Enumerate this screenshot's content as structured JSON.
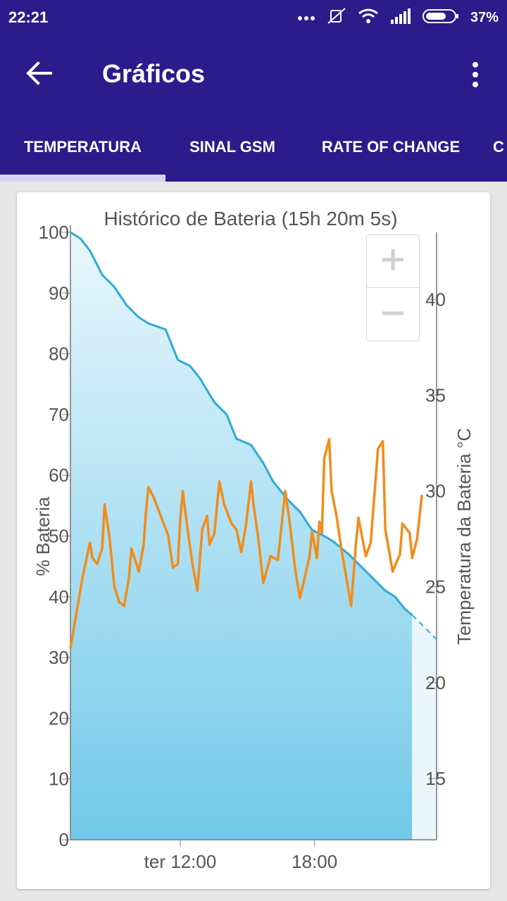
{
  "status_bar": {
    "time": "22:21",
    "battery_percent": "37%",
    "icons": [
      "more-dots-icon",
      "mute-icon",
      "wifi-icon",
      "signal-icon",
      "battery-icon"
    ]
  },
  "app_bar": {
    "title": "Gráficos",
    "back_icon": "arrow-back-icon",
    "menu_icon": "more-vert-icon"
  },
  "tabs": [
    {
      "label": "TEMPERATURA",
      "selected": true
    },
    {
      "label": "SINAL GSM",
      "selected": false
    },
    {
      "label": "RATE OF CHANGE",
      "selected": false
    },
    {
      "label": "C",
      "selected": false
    }
  ],
  "colors": {
    "primary": "#2c1b8a",
    "battery_line": "#2bacd8",
    "temperature_line": "#f28c1a",
    "area_top": "#e9f7fc",
    "area_bottom": "#72c9ea"
  },
  "zoom": {
    "in_icon": "plus-icon",
    "out_icon": "minus-icon"
  },
  "chart_data": {
    "type": "line",
    "title": "Histórico de Bateria (15h 20m 5s)",
    "x_unit": "hours since start",
    "x_ticks": [
      {
        "x": 4.5,
        "label": "ter 12:00"
      },
      {
        "x": 10.0,
        "label": "18:00"
      }
    ],
    "xlim": [
      0,
      15.0
    ],
    "y_left": {
      "label": "% Bateria",
      "lim": [
        0,
        100
      ],
      "ticks": [
        0,
        10,
        20,
        30,
        40,
        50,
        60,
        70,
        80,
        90,
        100
      ]
    },
    "y_right": {
      "label": "Temperatura da Bateria °C",
      "lim": [
        11.8,
        43.5
      ],
      "ticks": [
        15,
        20,
        25,
        30,
        35,
        40
      ]
    },
    "series": [
      {
        "name": "",
        "axis": "left",
        "style": "area",
        "points": [
          [
            0,
            100
          ],
          [
            0.4,
            99
          ],
          [
            0.8,
            97
          ],
          [
            1.3,
            93
          ],
          [
            1.8,
            91
          ],
          [
            2.3,
            88
          ],
          [
            2.8,
            86
          ],
          [
            3.2,
            85
          ],
          [
            3.9,
            84
          ],
          [
            4.4,
            79
          ],
          [
            4.9,
            78
          ],
          [
            5.3,
            76
          ],
          [
            5.9,
            72
          ],
          [
            6.4,
            70
          ],
          [
            6.8,
            66
          ],
          [
            7.4,
            65
          ],
          [
            7.9,
            62
          ],
          [
            8.3,
            59
          ],
          [
            8.9,
            56
          ],
          [
            9.4,
            54
          ],
          [
            9.9,
            51
          ],
          [
            10.4,
            50
          ],
          [
            10.8,
            49
          ],
          [
            11.4,
            47
          ],
          [
            11.9,
            45
          ],
          [
            12.4,
            43
          ],
          [
            12.9,
            41
          ],
          [
            13.3,
            40
          ],
          [
            13.7,
            38
          ],
          [
            14.0,
            37
          ]
        ]
      },
      {
        "name": "",
        "axis": "left",
        "style": "dashed",
        "points": [
          [
            14.0,
            37
          ],
          [
            15.0,
            33
          ]
        ]
      },
      {
        "name": "",
        "axis": "right",
        "style": "line",
        "points": [
          [
            0,
            21.8
          ],
          [
            0.5,
            25.5
          ],
          [
            0.8,
            27.3
          ],
          [
            0.9,
            26.5
          ],
          [
            1.1,
            26.2
          ],
          [
            1.3,
            27.0
          ],
          [
            1.4,
            29.3
          ],
          [
            1.6,
            27.6
          ],
          [
            1.8,
            25.0
          ],
          [
            2.0,
            24.2
          ],
          [
            2.2,
            24.0
          ],
          [
            2.4,
            25.5
          ],
          [
            2.5,
            27.0
          ],
          [
            2.8,
            25.8
          ],
          [
            3.0,
            27.2
          ],
          [
            3.1,
            29.0
          ],
          [
            3.2,
            30.2
          ],
          [
            3.4,
            29.7
          ],
          [
            3.7,
            28.7
          ],
          [
            4.0,
            27.7
          ],
          [
            4.2,
            26.0
          ],
          [
            4.4,
            26.2
          ],
          [
            4.5,
            28.5
          ],
          [
            4.6,
            30.0
          ],
          [
            4.8,
            28.0
          ],
          [
            5.0,
            26.2
          ],
          [
            5.2,
            24.8
          ],
          [
            5.4,
            28.0
          ],
          [
            5.6,
            28.7
          ],
          [
            5.7,
            27.2
          ],
          [
            5.9,
            27.8
          ],
          [
            6.1,
            30.5
          ],
          [
            6.3,
            29.3
          ],
          [
            6.6,
            28.3
          ],
          [
            6.8,
            28.0
          ],
          [
            7.0,
            26.8
          ],
          [
            7.2,
            28.3
          ],
          [
            7.4,
            30.5
          ],
          [
            7.5,
            29.3
          ],
          [
            7.7,
            27.5
          ],
          [
            7.9,
            25.2
          ],
          [
            8.2,
            26.6
          ],
          [
            8.5,
            26.4
          ],
          [
            8.8,
            30.0
          ],
          [
            9.0,
            28.2
          ],
          [
            9.2,
            26.0
          ],
          [
            9.4,
            24.4
          ],
          [
            9.8,
            26.6
          ],
          [
            9.9,
            27.9
          ],
          [
            10.1,
            26.5
          ],
          [
            10.2,
            28.4
          ],
          [
            10.3,
            27.8
          ],
          [
            10.4,
            31.7
          ],
          [
            10.6,
            32.7
          ],
          [
            10.7,
            30.0
          ],
          [
            10.9,
            28.7
          ],
          [
            11.1,
            27.0
          ],
          [
            11.3,
            25.5
          ],
          [
            11.5,
            24.0
          ],
          [
            11.7,
            27.3
          ],
          [
            11.8,
            28.6
          ],
          [
            12.1,
            26.6
          ],
          [
            12.3,
            27.3
          ],
          [
            12.6,
            32.2
          ],
          [
            12.8,
            32.6
          ],
          [
            12.9,
            28.0
          ],
          [
            13.2,
            25.8
          ],
          [
            13.5,
            26.7
          ],
          [
            13.6,
            28.3
          ],
          [
            13.9,
            27.8
          ],
          [
            14.0,
            26.5
          ],
          [
            14.2,
            27.5
          ],
          [
            14.4,
            29.8
          ]
        ]
      }
    ]
  }
}
